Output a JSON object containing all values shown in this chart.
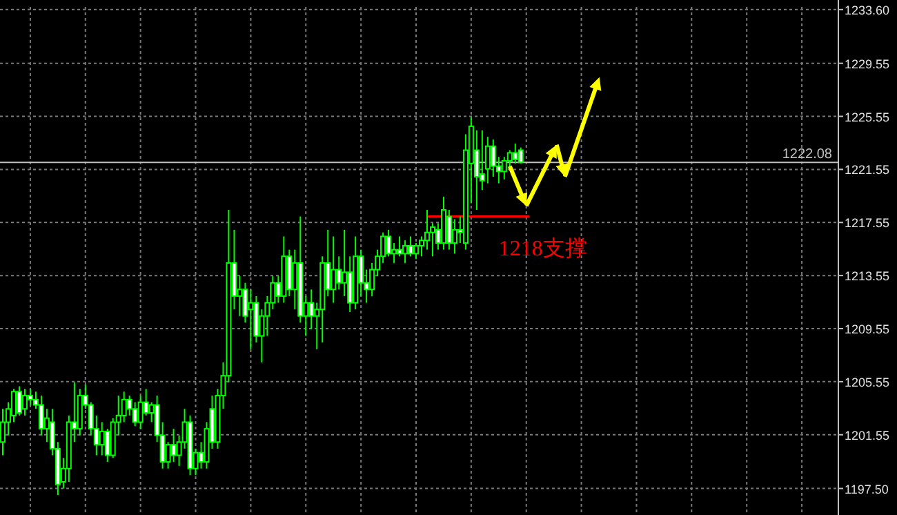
{
  "chart_data": {
    "type": "candlestick",
    "color": "#00ff00",
    "categories": [
      null,
      null,
      null,
      null,
      null,
      null,
      null,
      null,
      null,
      null,
      null,
      null,
      null,
      null,
      null,
      null,
      null,
      null,
      null,
      null,
      null,
      null,
      null,
      null,
      null,
      null,
      null,
      null,
      null,
      null,
      null,
      null,
      null,
      null,
      null,
      null,
      null,
      null,
      null,
      null,
      null,
      null,
      null,
      null,
      null,
      null,
      null,
      null,
      null,
      null,
      null,
      null,
      null,
      null,
      null,
      null,
      null,
      null,
      null,
      null,
      null,
      null,
      null,
      null,
      null,
      null,
      null,
      null,
      null,
      null,
      null,
      null,
      null,
      null,
      null,
      null,
      null,
      null,
      null,
      null,
      null,
      null,
      null,
      null,
      null,
      null,
      null,
      null,
      null,
      null,
      null,
      null,
      null,
      null,
      null,
      null,
      null,
      null,
      null,
      null,
      null,
      null,
      null,
      null,
      null,
      null,
      null,
      null,
      null,
      null,
      null,
      null,
      null,
      null,
      null,
      null,
      null,
      null,
      null,
      null,
      null,
      null,
      null,
      null,
      null,
      null,
      null,
      null,
      null,
      null,
      null,
      null,
      null,
      null,
      null,
      null,
      null,
      null,
      null,
      null,
      null,
      null,
      null,
      null,
      null,
      null,
      null,
      null,
      null,
      null,
      null,
      null
    ],
    "ohlc": [
      [
        1201.0,
        1203.5,
        1200.0,
        1202.5
      ],
      [
        1202.5,
        1204.0,
        1201.5,
        1203.5
      ],
      [
        1203.0,
        1205.0,
        1202.5,
        1204.8
      ],
      [
        1204.8,
        1205.2,
        1203.0,
        1203.2
      ],
      [
        1203.5,
        1205.0,
        1203.0,
        1204.5
      ],
      [
        1204.5,
        1205.0,
        1203.8,
        1204.2
      ],
      [
        1204.2,
        1204.8,
        1203.5,
        1203.8
      ],
      [
        1203.8,
        1204.5,
        1201.5,
        1202.0
      ],
      [
        1202.0,
        1203.5,
        1201.0,
        1202.8
      ],
      [
        1202.5,
        1203.5,
        1200.0,
        1200.5
      ],
      [
        1200.5,
        1201.0,
        1197.0,
        1197.8
      ],
      [
        1198.0,
        1199.8,
        1197.5,
        1199.0
      ],
      [
        1199.0,
        1203.0,
        1198.0,
        1202.5
      ],
      [
        1202.5,
        1205.5,
        1201.0,
        1202.0
      ],
      [
        1202.0,
        1205.0,
        1201.5,
        1204.5
      ],
      [
        1204.5,
        1205.3,
        1203.5,
        1203.8
      ],
      [
        1203.8,
        1204.0,
        1201.5,
        1202.0
      ],
      [
        1202.0,
        1203.0,
        1200.0,
        1200.8
      ],
      [
        1200.8,
        1202.5,
        1200.0,
        1201.8
      ],
      [
        1201.8,
        1202.0,
        1199.5,
        1200.0
      ],
      [
        1200.0,
        1202.8,
        1199.8,
        1202.5
      ],
      [
        1202.5,
        1204.5,
        1201.5,
        1203.0
      ],
      [
        1203.0,
        1204.8,
        1202.5,
        1204.2
      ],
      [
        1204.2,
        1204.5,
        1203.0,
        1203.5
      ],
      [
        1203.5,
        1204.0,
        1202.2,
        1202.5
      ],
      [
        1202.5,
        1204.5,
        1202.0,
        1204.0
      ],
      [
        1204.0,
        1205.0,
        1203.0,
        1203.2
      ],
      [
        1203.2,
        1204.0,
        1202.5,
        1203.8
      ],
      [
        1203.8,
        1204.5,
        1201.0,
        1201.5
      ],
      [
        1201.5,
        1202.5,
        1199.0,
        1199.5
      ],
      [
        1199.5,
        1201.0,
        1199.0,
        1200.8
      ],
      [
        1200.8,
        1202.0,
        1199.5,
        1200.0
      ],
      [
        1200.0,
        1201.5,
        1199.2,
        1201.0
      ],
      [
        1201.0,
        1203.5,
        1200.5,
        1202.5
      ],
      [
        1202.5,
        1203.0,
        1198.5,
        1199.0
      ],
      [
        1199.0,
        1200.5,
        1198.5,
        1200.2
      ],
      [
        1200.2,
        1201.0,
        1199.0,
        1199.5
      ],
      [
        1199.5,
        1202.5,
        1199.0,
        1202.0
      ],
      [
        1203.5,
        1204.5,
        1200.5,
        1201.0
      ],
      [
        1201.0,
        1205.0,
        1200.5,
        1204.5
      ],
      [
        1204.5,
        1207.0,
        1203.5,
        1206.0
      ],
      [
        1206.0,
        1218.5,
        1205.5,
        1214.5
      ],
      [
        1214.5,
        1217.0,
        1211.0,
        1212.0
      ],
      [
        1212.0,
        1213.5,
        1210.5,
        1212.5
      ],
      [
        1212.5,
        1213.0,
        1210.0,
        1210.5
      ],
      [
        1211.0,
        1212.5,
        1208.0,
        1211.5
      ],
      [
        1211.5,
        1212.0,
        1208.5,
        1209.0
      ],
      [
        1209.0,
        1211.0,
        1207.0,
        1210.5
      ],
      [
        1210.5,
        1212.0,
        1209.0,
        1211.5
      ],
      [
        1211.5,
        1213.5,
        1211.0,
        1213.0
      ],
      [
        1213.0,
        1213.5,
        1211.5,
        1212.0
      ],
      [
        1212.0,
        1216.5,
        1211.5,
        1215.0
      ],
      [
        1215.0,
        1215.5,
        1212.0,
        1212.5
      ],
      [
        1212.5,
        1215.5,
        1211.0,
        1214.5
      ],
      [
        1214.5,
        1218.0,
        1210.0,
        1210.5
      ],
      [
        1210.5,
        1212.0,
        1209.0,
        1211.5
      ],
      [
        1211.5,
        1212.5,
        1209.5,
        1210.5
      ],
      [
        1210.5,
        1211.5,
        1208.0,
        1211.0
      ],
      [
        1211.0,
        1215.0,
        1208.5,
        1214.5
      ],
      [
        1214.5,
        1217.0,
        1212.0,
        1212.5
      ],
      [
        1212.5,
        1216.5,
        1211.5,
        1214.0
      ],
      [
        1214.0,
        1215.0,
        1212.5,
        1213.0
      ],
      [
        1213.0,
        1217.0,
        1212.0,
        1213.8
      ],
      [
        1213.8,
        1215.0,
        1210.8,
        1211.5
      ],
      [
        1211.5,
        1216.5,
        1211.0,
        1215.0
      ],
      [
        1215.0,
        1215.5,
        1212.0,
        1213.0
      ],
      [
        1213.0,
        1214.0,
        1211.5,
        1212.5
      ],
      [
        1212.5,
        1214.5,
        1212.0,
        1214.0
      ],
      [
        1214.0,
        1215.5,
        1213.5,
        1215.0
      ],
      [
        1215.0,
        1216.8,
        1214.5,
        1216.5
      ],
      [
        1216.5,
        1217.0,
        1215.0,
        1215.2
      ],
      [
        1215.2,
        1216.0,
        1214.5,
        1215.5
      ],
      [
        1215.5,
        1216.5,
        1215.0,
        1215.2
      ],
      [
        1215.2,
        1216.2,
        1214.5,
        1215.8
      ],
      [
        1215.8,
        1216.5,
        1215.0,
        1215.2
      ],
      [
        1215.2,
        1216.0,
        1214.8,
        1215.8
      ],
      [
        1215.8,
        1216.5,
        1215.0,
        1216.2
      ],
      [
        1216.2,
        1218.5,
        1215.5,
        1216.8
      ],
      [
        1216.8,
        1217.5,
        1215.0,
        1217.2
      ],
      [
        1217.0,
        1217.5,
        1215.5,
        1216.0
      ],
      [
        1216.0,
        1219.5,
        1215.5,
        1218.5
      ],
      [
        1218.0,
        1218.5,
        1215.5,
        1216.0
      ],
      [
        1216.0,
        1217.8,
        1215.2,
        1217.0
      ],
      [
        1217.0,
        1218.0,
        1216.0,
        1216.8
      ],
      [
        1216.0,
        1224.2,
        1215.5,
        1223.0
      ],
      [
        1222.0,
        1225.5,
        1219.0,
        1224.8
      ],
      [
        1223.0,
        1224.5,
        1218.5,
        1221.0
      ],
      [
        1221.2,
        1224.5,
        1220.0,
        1220.7
      ],
      [
        1221.6,
        1224.0,
        1220.5,
        1223.3
      ],
      [
        1223.3,
        1223.8,
        1221.0,
        1221.8
      ],
      [
        1221.8,
        1222.5,
        1220.5,
        1221.4
      ],
      [
        1221.4,
        1222.5,
        1220.8,
        1222.2
      ],
      [
        1222.2,
        1223.0,
        1221.5,
        1222.8
      ],
      [
        1222.8,
        1223.5,
        1222.0,
        1222.3
      ],
      [
        1223.0,
        1223.2,
        1222.0,
        1222.08
      ],
      null,
      null,
      null,
      null,
      null,
      null,
      null,
      null,
      null,
      null,
      null,
      null,
      null,
      null,
      null,
      null,
      null,
      null,
      null,
      null,
      null,
      null,
      null,
      null,
      null,
      null,
      null,
      null,
      null,
      null,
      null,
      null,
      null,
      null,
      null,
      null,
      null,
      null,
      null,
      null,
      null,
      null,
      null,
      null,
      null,
      null,
      null,
      null,
      null,
      null,
      null,
      null,
      null,
      null,
      null,
      null,
      null
    ],
    "ylim": [
      1195.5,
      1233.8
    ],
    "yticks": [
      {
        "value": 1197.5,
        "label": "1197.50"
      },
      1201.55,
      1205.55,
      1209.55,
      1213.55,
      1217.55,
      1221.55,
      1225.55,
      1229.55,
      {
        "value": 1233.6,
        "label": "1233.60"
      }
    ],
    "tick_labels": "y",
    "grid": true,
    "ref_lines": [
      {
        "axis": "y",
        "value": 1222.08,
        "label": "1222.08",
        "color": "#c0c0c0"
      },
      {
        "axis": "y",
        "value": 1218,
        "label": "1218支撑",
        "color": "#ff0000"
      }
    ]
  }
}
